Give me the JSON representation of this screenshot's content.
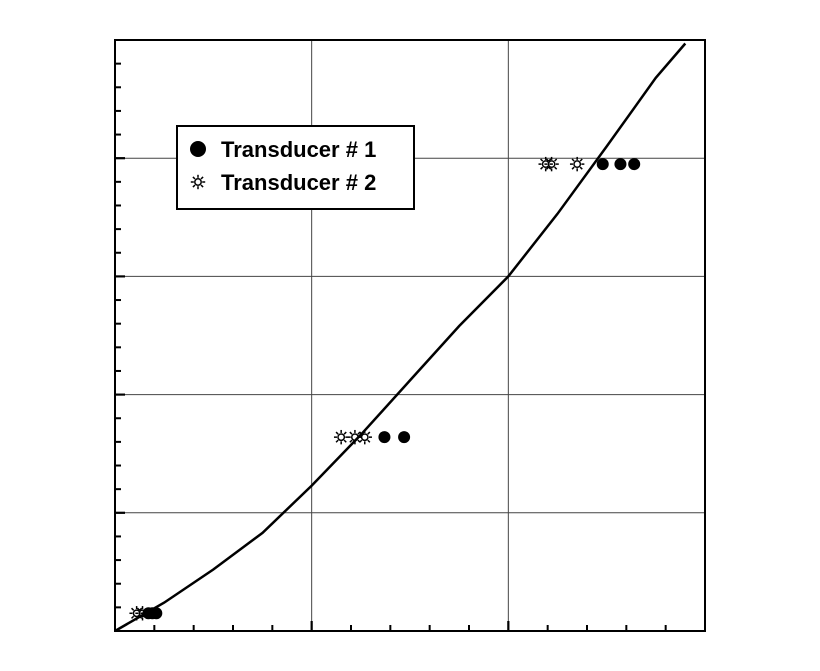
{
  "colors": {
    "background": "#ffffff",
    "axis": "#000000",
    "grid": "#444444",
    "marker": "#000000"
  },
  "chart_data": {
    "type": "scatter",
    "title": "",
    "xlabel": "",
    "ylabel": "",
    "xlim": [
      0,
      3
    ],
    "ylim": [
      0,
      5
    ],
    "xticks_major": [
      0,
      1,
      2,
      3
    ],
    "yticks_major": [
      0,
      1,
      2,
      3,
      4,
      5
    ],
    "tick_labels_visible": false,
    "grid": true,
    "legend": {
      "placement": "top-left",
      "entries": [
        {
          "label": "Transducer # 1",
          "marker": "filled-circle"
        },
        {
          "label": "Transducer # 2",
          "marker": "sun-star"
        }
      ]
    },
    "series": [
      {
        "name": "Transducer # 1",
        "marker": "filled-circle",
        "points": [
          {
            "x": 0.17,
            "y": 0.15
          },
          {
            "x": 0.19,
            "y": 0.15
          },
          {
            "x": 0.21,
            "y": 0.15
          },
          {
            "x": 1.37,
            "y": 1.64
          },
          {
            "x": 1.47,
            "y": 1.64
          },
          {
            "x": 2.48,
            "y": 3.95
          },
          {
            "x": 2.57,
            "y": 3.95
          },
          {
            "x": 2.64,
            "y": 3.95
          }
        ]
      },
      {
        "name": "Transducer # 2",
        "marker": "sun-star",
        "points": [
          {
            "x": 0.11,
            "y": 0.15
          },
          {
            "x": 0.14,
            "y": 0.15
          },
          {
            "x": 1.15,
            "y": 1.64
          },
          {
            "x": 1.22,
            "y": 1.64
          },
          {
            "x": 1.27,
            "y": 1.64
          },
          {
            "x": 2.19,
            "y": 3.95
          },
          {
            "x": 2.22,
            "y": 3.95
          },
          {
            "x": 2.35,
            "y": 3.95
          }
        ]
      },
      {
        "type": "line",
        "style": "solid",
        "points": [
          {
            "x": 0.0,
            "y": 0.0
          },
          {
            "x": 0.25,
            "y": 0.24
          },
          {
            "x": 0.5,
            "y": 0.52
          },
          {
            "x": 0.75,
            "y": 0.83
          },
          {
            "x": 1.0,
            "y": 1.23
          },
          {
            "x": 1.25,
            "y": 1.66
          },
          {
            "x": 1.5,
            "y": 2.12
          },
          {
            "x": 1.75,
            "y": 2.58
          },
          {
            "x": 2.0,
            "y": 3.0
          },
          {
            "x": 2.25,
            "y": 3.53
          },
          {
            "x": 2.5,
            "y": 4.1
          },
          {
            "x": 2.75,
            "y": 4.68
          },
          {
            "x": 2.9,
            "y": 4.97
          }
        ]
      }
    ]
  }
}
